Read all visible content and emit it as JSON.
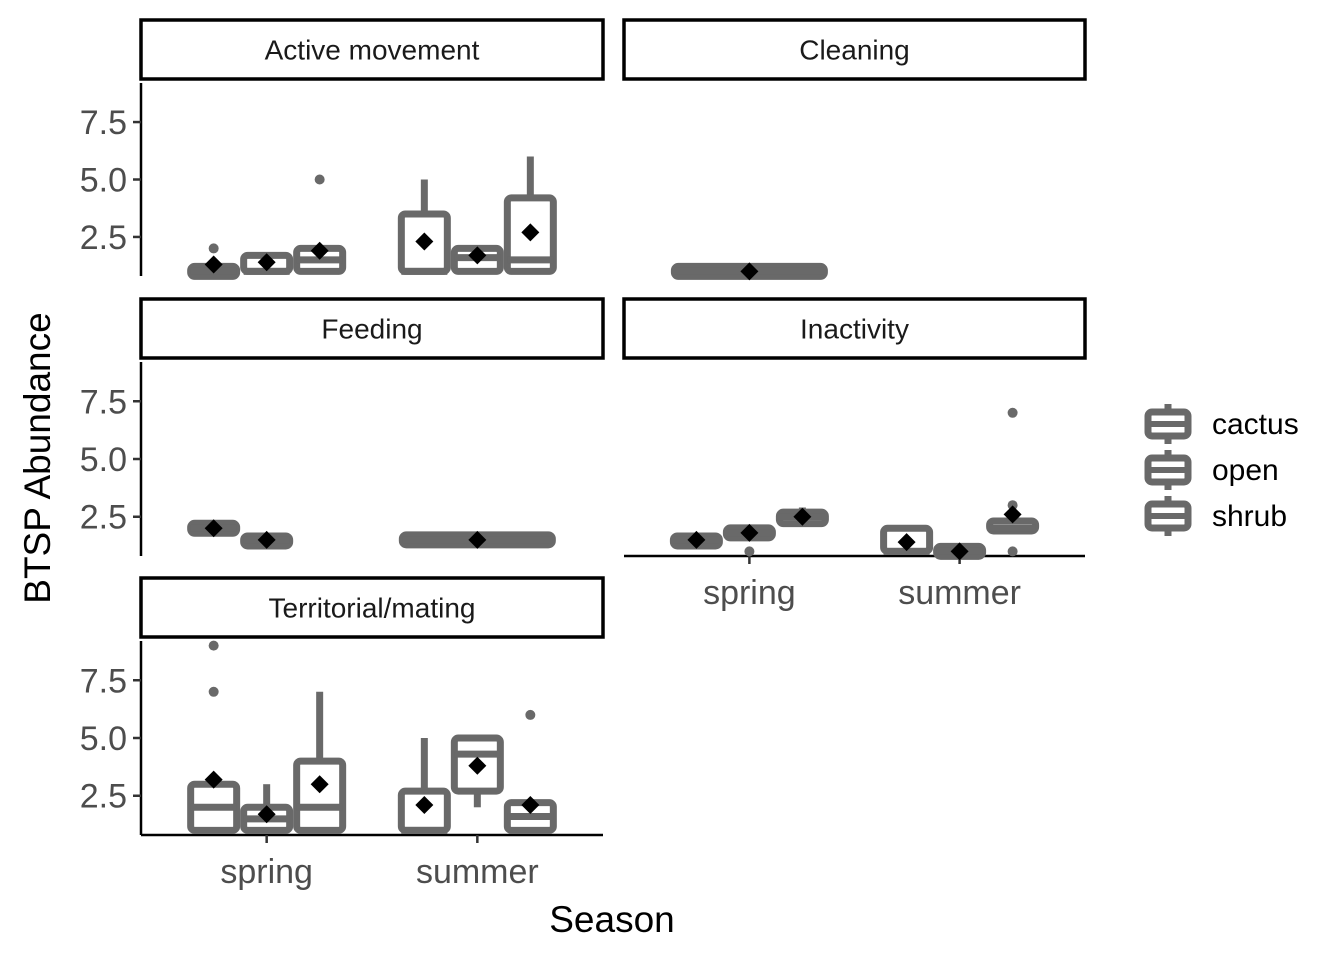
{
  "chart_data": {
    "type": "boxplot",
    "xlabel": "Season",
    "ylabel": "BTSP Abundance",
    "categories": [
      "spring",
      "summer"
    ],
    "groups": [
      "cactus",
      "open",
      "shrub"
    ],
    "y_ticks": [
      "2.5",
      "5.0",
      "7.5"
    ],
    "ylim": [
      0.8,
      9.2
    ],
    "box_color": "#696969",
    "mean_marker_color": "#000000",
    "legend_position": "right",
    "panels": [
      {
        "title": "Active movement",
        "boxes": [
          {
            "season": "spring",
            "group": "cactus",
            "min": 1,
            "q1": 1,
            "median": 1,
            "q3": 1,
            "max": 1,
            "mean": 1.3,
            "outliers": [
              2
            ]
          },
          {
            "season": "spring",
            "group": "open",
            "min": 1,
            "q1": 1,
            "median": 1,
            "q3": 1.7,
            "max": 1.7,
            "mean": 1.4,
            "outliers": []
          },
          {
            "season": "spring",
            "group": "shrub",
            "min": 1,
            "q1": 1,
            "median": 1.5,
            "q3": 2,
            "max": 2,
            "mean": 1.9,
            "outliers": [
              5
            ]
          },
          {
            "season": "summer",
            "group": "cactus",
            "min": 1,
            "q1": 1,
            "median": 1,
            "q3": 3.5,
            "max": 5,
            "mean": 2.3,
            "outliers": []
          },
          {
            "season": "summer",
            "group": "open",
            "min": 1,
            "q1": 1,
            "median": 1.6,
            "q3": 2,
            "max": 2,
            "mean": 1.7,
            "outliers": []
          },
          {
            "season": "summer",
            "group": "shrub",
            "min": 1,
            "q1": 1,
            "median": 1.5,
            "q3": 4.2,
            "max": 6,
            "mean": 2.7,
            "outliers": []
          }
        ]
      },
      {
        "title": "Cleaning",
        "boxes": [
          {
            "season": "spring",
            "group": "all",
            "min": 1,
            "q1": 1,
            "median": 1,
            "q3": 1,
            "max": 1,
            "mean": 1,
            "outliers": []
          }
        ]
      },
      {
        "title": "Feeding",
        "boxes": [
          {
            "season": "spring",
            "group": "cactus",
            "min": 2,
            "q1": 2,
            "median": 2,
            "q3": 2,
            "max": 2,
            "mean": 2,
            "outliers": []
          },
          {
            "season": "spring",
            "group": "open",
            "min": 1.2,
            "q1": 1.3,
            "median": 1.5,
            "q3": 1.6,
            "max": 1.7,
            "mean": 1.5,
            "outliers": []
          },
          {
            "season": "summer",
            "group": "all",
            "min": 1.3,
            "q1": 1.4,
            "median": 1.5,
            "q3": 1.6,
            "max": 1.7,
            "mean": 1.5,
            "outliers": []
          }
        ]
      },
      {
        "title": "Inactivity",
        "boxes": [
          {
            "season": "spring",
            "group": "cactus",
            "min": 1.3,
            "q1": 1.3,
            "median": 1.5,
            "q3": 1.6,
            "max": 1.7,
            "mean": 1.5,
            "outliers": []
          },
          {
            "season": "spring",
            "group": "open",
            "min": 1.5,
            "q1": 1.6,
            "median": 1.8,
            "q3": 2,
            "max": 2.1,
            "mean": 1.8,
            "outliers": [
              1
            ]
          },
          {
            "season": "spring",
            "group": "shrub",
            "min": 2.1,
            "q1": 2.2,
            "median": 2.5,
            "q3": 2.7,
            "max": 2.9,
            "mean": 2.5,
            "outliers": []
          },
          {
            "season": "summer",
            "group": "cactus",
            "min": 1,
            "q1": 1,
            "median": 1,
            "q3": 2,
            "max": 2,
            "mean": 1.4,
            "outliers": []
          },
          {
            "season": "summer",
            "group": "open",
            "min": 1,
            "q1": 1,
            "median": 1,
            "q3": 1,
            "max": 1,
            "mean": 1,
            "outliers": []
          },
          {
            "season": "summer",
            "group": "shrub",
            "min": 2,
            "q1": 2,
            "median": 2,
            "q3": 2.2,
            "max": 2.2,
            "mean": 2.6,
            "outliers": [
              7,
              3,
              1
            ]
          }
        ]
      },
      {
        "title": "Territorial/mating",
        "boxes": [
          {
            "season": "spring",
            "group": "cactus",
            "min": 1,
            "q1": 1,
            "median": 2,
            "q3": 3,
            "max": 3,
            "mean": 3.2,
            "outliers": [
              9,
              7
            ]
          },
          {
            "season": "spring",
            "group": "open",
            "min": 1,
            "q1": 1,
            "median": 1.5,
            "q3": 2,
            "max": 3,
            "mean": 1.7,
            "outliers": []
          },
          {
            "season": "spring",
            "group": "shrub",
            "min": 1,
            "q1": 1,
            "median": 2,
            "q3": 4,
            "max": 7,
            "mean": 3,
            "outliers": []
          },
          {
            "season": "summer",
            "group": "cactus",
            "min": 1,
            "q1": 1,
            "median": 1,
            "q3": 2.7,
            "max": 5,
            "mean": 2.1,
            "outliers": []
          },
          {
            "season": "summer",
            "group": "open",
            "min": 2,
            "q1": 2.7,
            "median": 4.3,
            "q3": 5,
            "max": 5,
            "mean": 3.8,
            "outliers": []
          },
          {
            "season": "summer",
            "group": "shrub",
            "min": 1,
            "q1": 1,
            "median": 1.6,
            "q3": 2.2,
            "max": 2.2,
            "mean": 2.1,
            "outliers": [
              6
            ]
          }
        ]
      }
    ],
    "legend": [
      "cactus",
      "open",
      "shrub"
    ]
  }
}
